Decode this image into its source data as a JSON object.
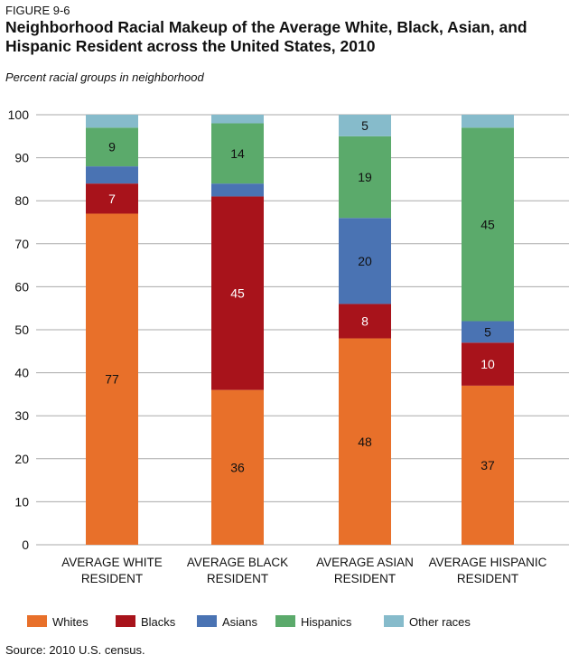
{
  "figure_label": "FIGURE 9-6",
  "source": "Source: 2010 U.S. census.",
  "chart_data": {
    "type": "bar",
    "stacked": true,
    "title": "Neighborhood Racial Makeup of the Average White, Black, Asian, and Hispanic Resident across the United States, 2010",
    "subtitle": "Percent racial groups in neighborhood",
    "categories": [
      [
        "AVERAGE WHITE",
        "RESIDENT"
      ],
      [
        "AVERAGE BLACK",
        "RESIDENT"
      ],
      [
        "AVERAGE ASIAN",
        "RESIDENT"
      ],
      [
        "AVERAGE HISPANIC",
        "RESIDENT"
      ]
    ],
    "series": [
      {
        "name": "Whites",
        "color": "#E8702A",
        "values": [
          77,
          36,
          48,
          37
        ],
        "labels": [
          "77",
          "36",
          "48",
          "37"
        ]
      },
      {
        "name": "Blacks",
        "color": "#A8131B",
        "values": [
          7,
          45,
          8,
          10
        ],
        "labels": [
          "7",
          "45",
          "8",
          "10"
        ]
      },
      {
        "name": "Asians",
        "color": "#4A73B3",
        "values": [
          4,
          3,
          20,
          5
        ],
        "labels": [
          "",
          "",
          "20",
          "5"
        ]
      },
      {
        "name": "Hispanics",
        "color": "#5BAA6B",
        "values": [
          9,
          14,
          19,
          45
        ],
        "labels": [
          "9",
          "14",
          "19",
          "45"
        ]
      },
      {
        "name": "Other races",
        "color": "#86BBCB",
        "values": [
          3,
          2,
          5,
          3
        ],
        "labels": [
          "",
          "",
          "5",
          ""
        ]
      }
    ],
    "ylim": [
      0,
      100
    ],
    "yticks": [
      0,
      10,
      20,
      30,
      40,
      50,
      60,
      70,
      80,
      90,
      100
    ],
    "grid": true,
    "legend": "bottom"
  }
}
